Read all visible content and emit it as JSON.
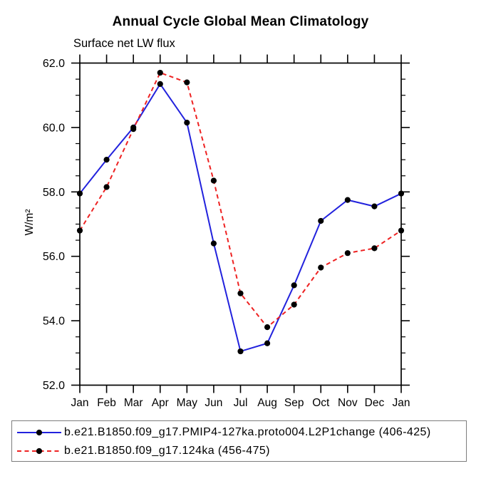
{
  "chart_data": {
    "type": "line",
    "title": "Annual Cycle Global Mean Climatology",
    "subtitle": "Surface net LW flux",
    "ylabel": "W/m²",
    "xlabel": "",
    "categories": [
      "Jan",
      "Feb",
      "Mar",
      "Apr",
      "May",
      "Jun",
      "Jul",
      "Aug",
      "Sep",
      "Oct",
      "Nov",
      "Dec",
      "Jan"
    ],
    "ylim": [
      52.0,
      62.0
    ],
    "ytick_major_step": 2.0,
    "ytick_minor_step": 0.5,
    "ytick_labels": [
      "52.0",
      "54.0",
      "56.0",
      "58.0",
      "60.0",
      "62.0"
    ],
    "grid": "off",
    "legend_position": "bottom",
    "axis_color": "#000000",
    "marker": "filled-circle",
    "marker_color": "#000000",
    "series": [
      {
        "name": "b.e21.B1850.f09_g17.PMIP4-127ka.proto004.L2P1change (406-425)",
        "color": "#2222dd",
        "line_style": "solid",
        "values": [
          57.95,
          59.0,
          60.0,
          61.35,
          60.15,
          56.4,
          53.05,
          53.3,
          55.1,
          57.1,
          57.75,
          57.55,
          57.95
        ]
      },
      {
        "name": "b.e21.B1850.f09_g17.124ka (456-475)",
        "color": "#ee2222",
        "line_style": "dashed",
        "values": [
          56.8,
          58.15,
          59.95,
          61.7,
          61.4,
          58.35,
          54.85,
          53.8,
          54.5,
          55.65,
          56.1,
          56.25,
          56.8
        ]
      }
    ]
  }
}
